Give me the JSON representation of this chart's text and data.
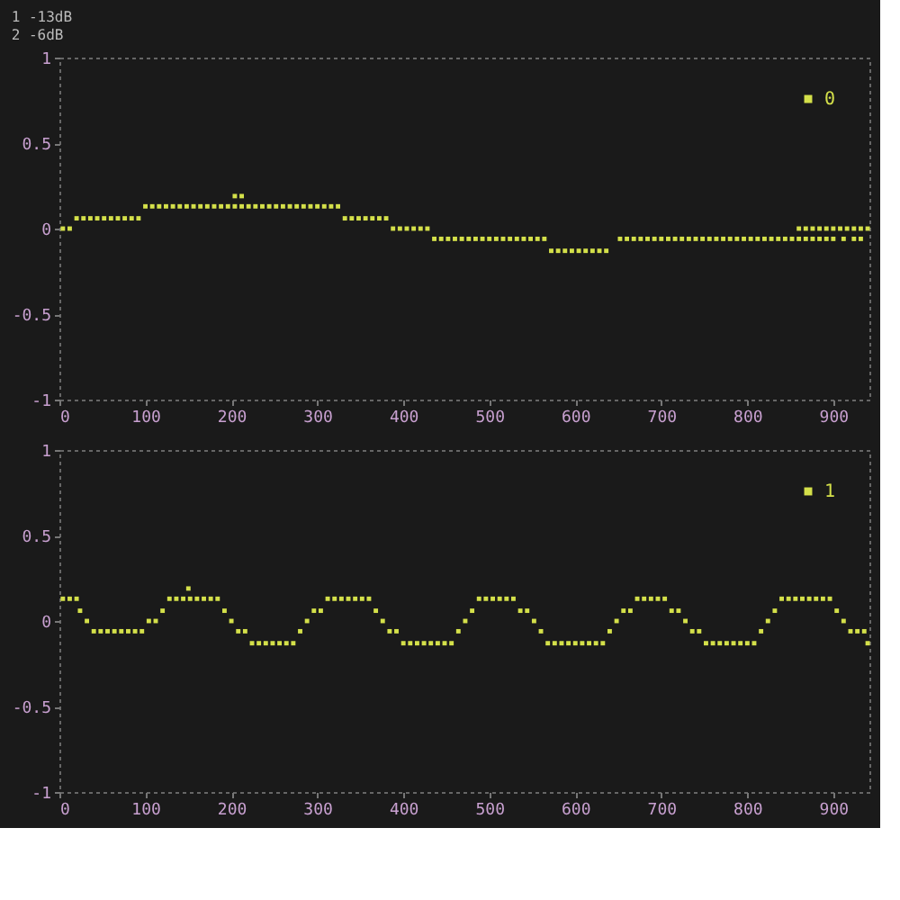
{
  "chart_data": [
    {
      "type": "scatter",
      "annotations": [
        "1 -13dB",
        "2 -6dB"
      ],
      "marker": "square",
      "legend": "top right",
      "grid": false,
      "xlim": [
        0,
        942
      ],
      "ylim": [
        -1,
        1
      ],
      "xticks": [
        0,
        100,
        200,
        300,
        400,
        500,
        600,
        700,
        800,
        900
      ],
      "yticks": [
        -1,
        -0.5,
        0,
        0.5,
        1
      ],
      "series": [
        {
          "name": "0",
          "color": "#d4e04a",
          "x": [
            4,
            12,
            20,
            28,
            36,
            44,
            52,
            60,
            68,
            76,
            84,
            92,
            100,
            108,
            116,
            124,
            132,
            140,
            148,
            156,
            164,
            172,
            180,
            188,
            196,
            204,
            212,
            220,
            228,
            236,
            244,
            252,
            260,
            268,
            276,
            284,
            292,
            300,
            308,
            316,
            324,
            204,
            212,
            332,
            340,
            348,
            356,
            364,
            372,
            380,
            388,
            396,
            404,
            412,
            420,
            428,
            436,
            444,
            452,
            460,
            468,
            476,
            484,
            492,
            500,
            508,
            516,
            524,
            532,
            540,
            548,
            556,
            564,
            572,
            580,
            588,
            596,
            604,
            612,
            620,
            628,
            636,
            652,
            660,
            668,
            676,
            684,
            692,
            700,
            708,
            716,
            724,
            732,
            740,
            748,
            756,
            764,
            772,
            780,
            788,
            796,
            804,
            812,
            820,
            828,
            836,
            844,
            852,
            860,
            868,
            876,
            884,
            892,
            900,
            912,
            924,
            932,
            860,
            868,
            876,
            884,
            892,
            900,
            908,
            916,
            924,
            932,
            940
          ],
          "values": [
            0,
            0,
            0.06,
            0.06,
            0.06,
            0.06,
            0.06,
            0.06,
            0.06,
            0.06,
            0.06,
            0.06,
            0.13,
            0.13,
            0.13,
            0.13,
            0.13,
            0.13,
            0.13,
            0.13,
            0.13,
            0.13,
            0.13,
            0.13,
            0.13,
            0.13,
            0.13,
            0.13,
            0.13,
            0.13,
            0.13,
            0.13,
            0.13,
            0.13,
            0.13,
            0.13,
            0.13,
            0.13,
            0.13,
            0.13,
            0.13,
            0.19,
            0.19,
            0.06,
            0.06,
            0.06,
            0.06,
            0.06,
            0.06,
            0.06,
            0,
            0,
            0,
            0,
            0,
            0,
            -0.06,
            -0.06,
            -0.06,
            -0.06,
            -0.06,
            -0.06,
            -0.06,
            -0.06,
            -0.06,
            -0.06,
            -0.06,
            -0.06,
            -0.06,
            -0.06,
            -0.06,
            -0.06,
            -0.06,
            -0.13,
            -0.13,
            -0.13,
            -0.13,
            -0.13,
            -0.13,
            -0.13,
            -0.13,
            -0.13,
            -0.06,
            -0.06,
            -0.06,
            -0.06,
            -0.06,
            -0.06,
            -0.06,
            -0.06,
            -0.06,
            -0.06,
            -0.06,
            -0.06,
            -0.06,
            -0.06,
            -0.06,
            -0.06,
            -0.06,
            -0.06,
            -0.06,
            -0.06,
            -0.06,
            -0.06,
            -0.06,
            -0.06,
            -0.06,
            -0.06,
            -0.06,
            -0.06,
            -0.06,
            -0.06,
            -0.06,
            -0.06,
            -0.06,
            -0.06,
            -0.06,
            0,
            0,
            0,
            0,
            0,
            0,
            0,
            0,
            0,
            0,
            0
          ]
        }
      ]
    },
    {
      "type": "scatter",
      "marker": "square",
      "legend": "top right",
      "grid": false,
      "xlim": [
        0,
        942
      ],
      "ylim": [
        -1,
        1
      ],
      "xticks": [
        0,
        100,
        200,
        300,
        400,
        500,
        600,
        700,
        800,
        900
      ],
      "yticks": [
        -1,
        -0.5,
        0,
        0.5,
        1
      ],
      "series": [
        {
          "name": "1",
          "color": "#d4e04a",
          "x": [
            4,
            12,
            20,
            24,
            32,
            40,
            48,
            56,
            64,
            72,
            80,
            88,
            96,
            104,
            112,
            120,
            128,
            136,
            144,
            152,
            160,
            168,
            176,
            184,
            150,
            192,
            200,
            208,
            216,
            224,
            232,
            240,
            248,
            256,
            264,
            272,
            280,
            288,
            296,
            304,
            312,
            320,
            328,
            336,
            344,
            352,
            360,
            368,
            376,
            384,
            392,
            400,
            408,
            416,
            424,
            432,
            440,
            448,
            456,
            464,
            472,
            480,
            488,
            496,
            504,
            512,
            520,
            528,
            536,
            544,
            552,
            560,
            568,
            576,
            584,
            592,
            600,
            608,
            616,
            624,
            632,
            640,
            648,
            656,
            664,
            672,
            680,
            688,
            696,
            704,
            712,
            720,
            728,
            736,
            744,
            752,
            760,
            768,
            776,
            784,
            792,
            800,
            808,
            816,
            824,
            832,
            840,
            848,
            856,
            864,
            872,
            880,
            888,
            896,
            904,
            912,
            920,
            928,
            936,
            940
          ],
          "values": [
            0.13,
            0.13,
            0.13,
            0.06,
            0,
            -0.06,
            -0.06,
            -0.06,
            -0.06,
            -0.06,
            -0.06,
            -0.06,
            -0.06,
            0,
            0,
            0.06,
            0.13,
            0.13,
            0.13,
            0.13,
            0.13,
            0.13,
            0.13,
            0.13,
            0.19,
            0.06,
            0,
            -0.06,
            -0.06,
            -0.13,
            -0.13,
            -0.13,
            -0.13,
            -0.13,
            -0.13,
            -0.13,
            -0.06,
            0,
            0.06,
            0.06,
            0.13,
            0.13,
            0.13,
            0.13,
            0.13,
            0.13,
            0.13,
            0.06,
            0,
            -0.06,
            -0.06,
            -0.13,
            -0.13,
            -0.13,
            -0.13,
            -0.13,
            -0.13,
            -0.13,
            -0.13,
            -0.06,
            0,
            0.06,
            0.13,
            0.13,
            0.13,
            0.13,
            0.13,
            0.13,
            0.06,
            0.06,
            0,
            -0.06,
            -0.13,
            -0.13,
            -0.13,
            -0.13,
            -0.13,
            -0.13,
            -0.13,
            -0.13,
            -0.13,
            -0.06,
            0,
            0.06,
            0.06,
            0.13,
            0.13,
            0.13,
            0.13,
            0.13,
            0.06,
            0.06,
            0,
            -0.06,
            -0.06,
            -0.13,
            -0.13,
            -0.13,
            -0.13,
            -0.13,
            -0.13,
            -0.13,
            -0.13,
            -0.06,
            0,
            0.06,
            0.13,
            0.13,
            0.13,
            0.13,
            0.13,
            0.13,
            0.13,
            0.13,
            0.06,
            0,
            -0.06,
            -0.06,
            -0.06,
            -0.13
          ]
        }
      ]
    }
  ]
}
